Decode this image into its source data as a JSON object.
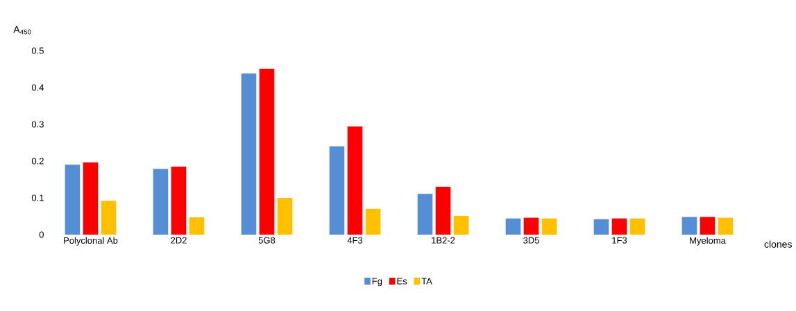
{
  "chart_data": {
    "type": "bar",
    "ylabel": "A$_{450}$",
    "xlabel": "clones",
    "categories": [
      "Polyclonal Ab",
      "2D2",
      "5G8",
      "4F3",
      "1B2-2",
      "3D5",
      "1F3",
      "Myeloma"
    ],
    "series": [
      {
        "name": "Fg",
        "color": "#558ed5",
        "values": [
          0.19,
          0.179,
          0.438,
          0.24,
          0.111,
          0.044,
          0.042,
          0.048
        ]
      },
      {
        "name": "Es",
        "color": "#ff0000",
        "values": [
          0.196,
          0.185,
          0.451,
          0.294,
          0.13,
          0.046,
          0.044,
          0.048
        ]
      },
      {
        "name": "TA",
        "color": "#ffc000",
        "values": [
          0.092,
          0.047,
          0.1,
          0.07,
          0.051,
          0.044,
          0.044,
          0.046
        ]
      }
    ],
    "ylim": [
      0,
      0.5
    ],
    "yticks": [
      0,
      0.1,
      0.2,
      0.3,
      0.4,
      0.5
    ],
    "legend": "bottom"
  }
}
